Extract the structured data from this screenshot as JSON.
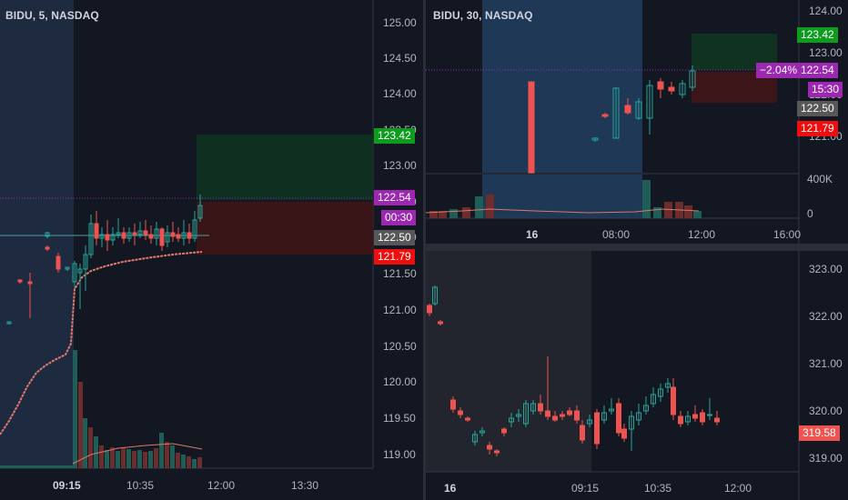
{
  "chart_left": {
    "title": "BIDU, 5, NASDAQ",
    "price_ticks": [
      "125.00",
      "124.50",
      "124.00",
      "123.50",
      "123.00",
      "122.50",
      "122.00",
      "121.50",
      "121.00",
      "120.50",
      "120.00",
      "119.50",
      "119.00"
    ],
    "time_ticks": [
      "09:15",
      "10:35",
      "12:00",
      "13:30"
    ],
    "tags": {
      "target": "123.42",
      "current": "122.54",
      "countdown": "00:30",
      "entry": "122.50",
      "stop": "121.79"
    },
    "colors": {
      "up": "#26a69a",
      "down": "#ef5350",
      "target": "#0e9c1e",
      "stop": "#f00d0d",
      "current": "#9c27b0",
      "entry": "#575757"
    }
  },
  "chart_top_right": {
    "title": "BIDU, 30, NASDAQ",
    "price_ticks": [
      "124.00",
      "123.00",
      "122.00",
      "121.00"
    ],
    "volume_ticks": [
      "400K",
      "0"
    ],
    "time_ticks": [
      "16",
      "08:00",
      "12:00",
      "16:00"
    ],
    "tags": {
      "percent": "−2.04%",
      "target": "123.42",
      "current": "122.54",
      "countdown": "15:30",
      "entry": "122.50",
      "stop": "121.79"
    }
  },
  "chart_bottom_right": {
    "price_ticks": [
      "323.00",
      "322.00",
      "321.00",
      "320.00",
      "319.00"
    ],
    "time_ticks": [
      "16",
      "09:15",
      "10:35",
      "12:00"
    ],
    "tags": {
      "current": "319.58"
    }
  }
}
